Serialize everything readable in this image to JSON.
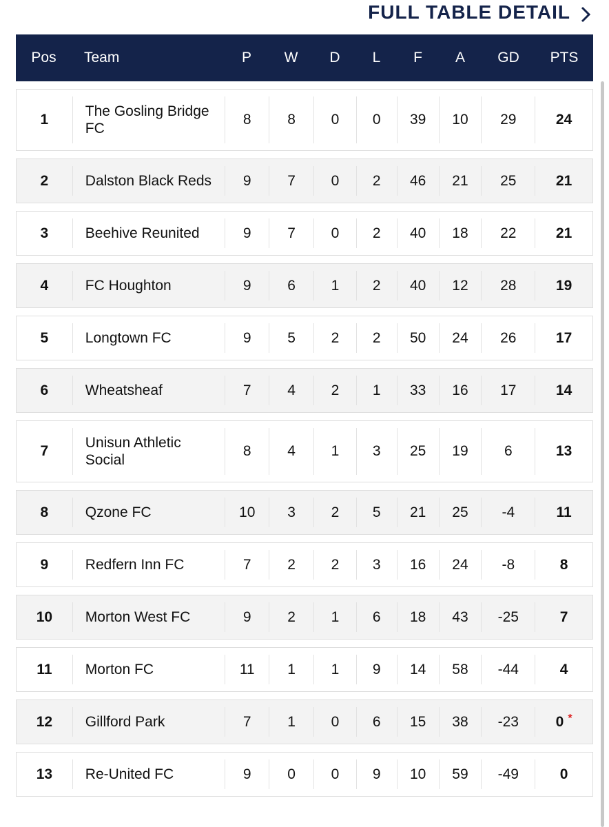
{
  "header": {
    "link": "FULL TABLE DETAIL"
  },
  "table": {
    "columns": [
      "Pos",
      "Team",
      "P",
      "W",
      "D",
      "L",
      "F",
      "A",
      "GD",
      "PTS"
    ],
    "rows": [
      {
        "cells": [
          1,
          "The Gosling Bridge FC",
          8,
          8,
          0,
          0,
          39,
          10,
          29,
          24
        ]
      },
      {
        "cells": [
          2,
          "Dalston Black Reds",
          9,
          7,
          0,
          2,
          46,
          21,
          25,
          21
        ]
      },
      {
        "cells": [
          3,
          "Beehive Reunited",
          9,
          7,
          0,
          2,
          40,
          18,
          22,
          21
        ]
      },
      {
        "cells": [
          4,
          "FC Houghton",
          9,
          6,
          1,
          2,
          40,
          12,
          28,
          19
        ]
      },
      {
        "cells": [
          5,
          "Longtown FC",
          9,
          5,
          2,
          2,
          50,
          24,
          26,
          17
        ]
      },
      {
        "cells": [
          6,
          "Wheatsheaf",
          7,
          4,
          2,
          1,
          33,
          16,
          17,
          14
        ]
      },
      {
        "cells": [
          7,
          "Unisun Athletic Social",
          8,
          4,
          1,
          3,
          25,
          19,
          6,
          13
        ]
      },
      {
        "cells": [
          8,
          "Qzone FC",
          10,
          3,
          2,
          5,
          21,
          25,
          -4,
          11
        ]
      },
      {
        "cells": [
          9,
          "Redfern Inn FC",
          7,
          2,
          2,
          3,
          16,
          24,
          -8,
          8
        ]
      },
      {
        "cells": [
          10,
          "Morton West FC",
          9,
          2,
          1,
          6,
          18,
          43,
          -25,
          7
        ]
      },
      {
        "cells": [
          11,
          "Morton FC",
          11,
          1,
          1,
          9,
          14,
          58,
          -44,
          4
        ]
      },
      {
        "cells": [
          12,
          "Gillford Park",
          7,
          1,
          0,
          6,
          15,
          38,
          -23,
          0
        ],
        "note": "*"
      },
      {
        "cells": [
          13,
          "Re-United FC",
          9,
          0,
          0,
          9,
          10,
          59,
          -49,
          0
        ]
      }
    ]
  }
}
